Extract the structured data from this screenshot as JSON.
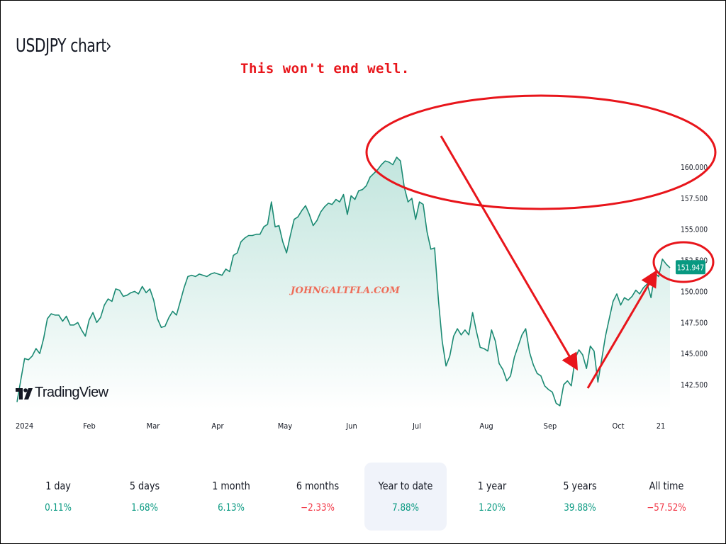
{
  "header": {
    "title": "USDJPY chart",
    "chevron": "›"
  },
  "annotation": "This won't end well.",
  "watermark": "JOHNGALTFLA.COM",
  "brand": {
    "logo_text": "TradingView",
    "icon": "tradingview-logo-icon"
  },
  "colors": {
    "line": "#1b8a73",
    "area_top": "#bfe4dc",
    "annotation_red": "#e8151b",
    "price_badge": "#089981",
    "positive": "#089981",
    "negative": "#f23645"
  },
  "chart_data": {
    "type": "area",
    "title": "USDJPY chart",
    "x_tick_labels": [
      "2024",
      "Feb",
      "Mar",
      "Apr",
      "May",
      "Jun",
      "Jul",
      "Aug",
      "Sep",
      "Oct",
      "21"
    ],
    "y_tick_labels": [
      "142.500",
      "145.000",
      "147.500",
      "150.000",
      "152.500",
      "155.000",
      "157.500",
      "160.000"
    ],
    "ylim": [
      140.5,
      160.5
    ],
    "last_price": "151.947",
    "series": [
      {
        "values": [
          141.1,
          142.9,
          144.6,
          144.5,
          144.8,
          145.4,
          145.0,
          146.2,
          147.8,
          148.2,
          148.1,
          148.1,
          147.6,
          148.0,
          147.3,
          147.3,
          147.5,
          146.9,
          146.4,
          147.7,
          148.3,
          147.5,
          147.9,
          148.9,
          149.4,
          149.2,
          150.2,
          150.1,
          149.6,
          149.7,
          149.9,
          150.0,
          149.8,
          150.4,
          149.9,
          150.2,
          149.3,
          147.8,
          147.1,
          147.2,
          147.9,
          148.4,
          148.1,
          149.2,
          150.3,
          151.2,
          151.3,
          151.2,
          151.4,
          151.3,
          151.2,
          151.4,
          151.5,
          151.4,
          151.3,
          151.8,
          151.6,
          152.9,
          153.1,
          154.0,
          154.3,
          154.5,
          154.5,
          154.6,
          154.6,
          155.2,
          155.4,
          157.2,
          155.2,
          155.3,
          154.0,
          153.1,
          154.5,
          155.8,
          156.0,
          156.5,
          156.9,
          156.2,
          155.3,
          155.7,
          156.4,
          156.8,
          157.1,
          157.0,
          157.4,
          157.2,
          157.8,
          156.2,
          157.7,
          157.4,
          158.1,
          158.2,
          158.5,
          159.2,
          159.5,
          159.8,
          160.2,
          160.5,
          160.4,
          160.2,
          160.8,
          160.5,
          158.4,
          157.2,
          157.5,
          155.8,
          157.2,
          157.0,
          154.8,
          153.4,
          153.5,
          149.3,
          146.0,
          144.0,
          144.8,
          146.4,
          147.0,
          146.5,
          146.9,
          146.5,
          148.3,
          146.8,
          145.5,
          145.4,
          145.2,
          146.9,
          146.0,
          144.2,
          143.7,
          142.8,
          143.2,
          144.7,
          145.6,
          146.5,
          147.0,
          145.1,
          144.1,
          143.4,
          143.2,
          142.4,
          142.1,
          141.9,
          141.0,
          140.8,
          142.5,
          142.8,
          142.4,
          144.6,
          145.3,
          144.9,
          143.8,
          145.6,
          145.2,
          142.7,
          144.5,
          146.4,
          147.8,
          149.2,
          149.8,
          148.9,
          149.5,
          149.3,
          149.6,
          150.1,
          149.8,
          150.3,
          150.6,
          149.5,
          151.5,
          151.2,
          152.6,
          152.2,
          151.9
        ]
      }
    ]
  },
  "periods": [
    {
      "label": "1 day",
      "value": "0.11%",
      "sign": "pos"
    },
    {
      "label": "5 days",
      "value": "1.68%",
      "sign": "pos"
    },
    {
      "label": "1 month",
      "value": "6.13%",
      "sign": "pos"
    },
    {
      "label": "6 months",
      "value": "−2.33%",
      "sign": "neg"
    },
    {
      "label": "Year to date",
      "value": "7.88%",
      "sign": "pos",
      "active": true
    },
    {
      "label": "1 year",
      "value": "1.20%",
      "sign": "pos"
    },
    {
      "label": "5 years",
      "value": "39.88%",
      "sign": "pos"
    },
    {
      "label": "All time",
      "value": "−57.52%",
      "sign": "neg"
    }
  ]
}
